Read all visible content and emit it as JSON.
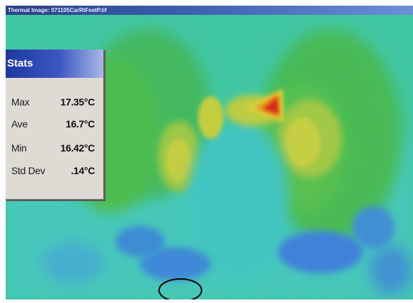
{
  "window": {
    "title": "Thermal Image: 071105CarRtFeetP.tif"
  },
  "stats": {
    "title": "Stats",
    "rows": [
      {
        "label": "Max",
        "value": "17.35°C"
      },
      {
        "label": "Ave",
        "value": "16.7°C"
      },
      {
        "label": "Min",
        "value": "16.42°C"
      },
      {
        "label": "Std Dev",
        "value": ".14°C"
      }
    ]
  },
  "colors": {
    "background_cyan": "#3ec49a",
    "warm_green": "#4fbb46",
    "yellow": "#d8d830",
    "hot_red": "#e02010",
    "cold_blue": "#3a7ad8",
    "stats_panel": "#dedbd5",
    "stats_header": "#2a45b0"
  }
}
